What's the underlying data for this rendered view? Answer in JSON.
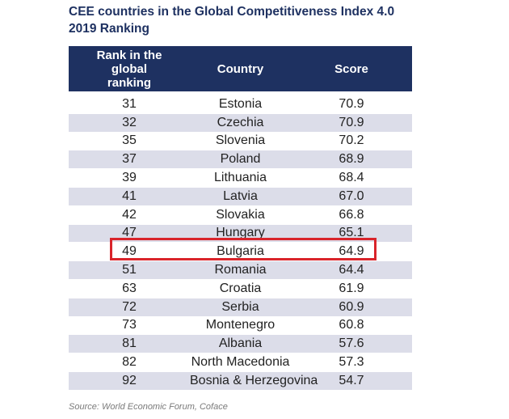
{
  "title": "CEE countries in the Global Competitiveness Index 4.0 2019 Ranking",
  "source": "Source: World Economic Forum, Coface",
  "colors": {
    "header_bg": "#1e3161",
    "alt_row": "#dcdde9",
    "highlight": "#d9242b"
  },
  "highlighted_country": "Bulgaria",
  "chart_data": {
    "type": "table",
    "title": "CEE countries in the Global Competitiveness Index 4.0 2019 Ranking",
    "columns": [
      "Rank in the global ranking",
      "Country",
      "Score"
    ],
    "rows": [
      {
        "rank": "31",
        "country": "Estonia",
        "score": "70.9"
      },
      {
        "rank": "32",
        "country": "Czechia",
        "score": "70.9"
      },
      {
        "rank": "35",
        "country": "Slovenia",
        "score": "70.2"
      },
      {
        "rank": "37",
        "country": "Poland",
        "score": "68.9"
      },
      {
        "rank": "39",
        "country": "Lithuania",
        "score": "68.4"
      },
      {
        "rank": "41",
        "country": "Latvia",
        "score": "67.0"
      },
      {
        "rank": "42",
        "country": "Slovakia",
        "score": "66.8"
      },
      {
        "rank": "47",
        "country": "Hungary",
        "score": "65.1"
      },
      {
        "rank": "49",
        "country": "Bulgaria",
        "score": "64.9"
      },
      {
        "rank": "51",
        "country": "Romania",
        "score": "64.4"
      },
      {
        "rank": "63",
        "country": "Croatia",
        "score": "61.9"
      },
      {
        "rank": "72",
        "country": "Serbia",
        "score": "60.9"
      },
      {
        "rank": "73",
        "country": "Montenegro",
        "score": "60.8"
      },
      {
        "rank": "81",
        "country": "Albania",
        "score": "57.6"
      },
      {
        "rank": "82",
        "country": "North Macedonia",
        "score": "57.3"
      },
      {
        "rank": "92",
        "country": "Bosnia & Herzegovina",
        "score": "54.7"
      }
    ]
  }
}
